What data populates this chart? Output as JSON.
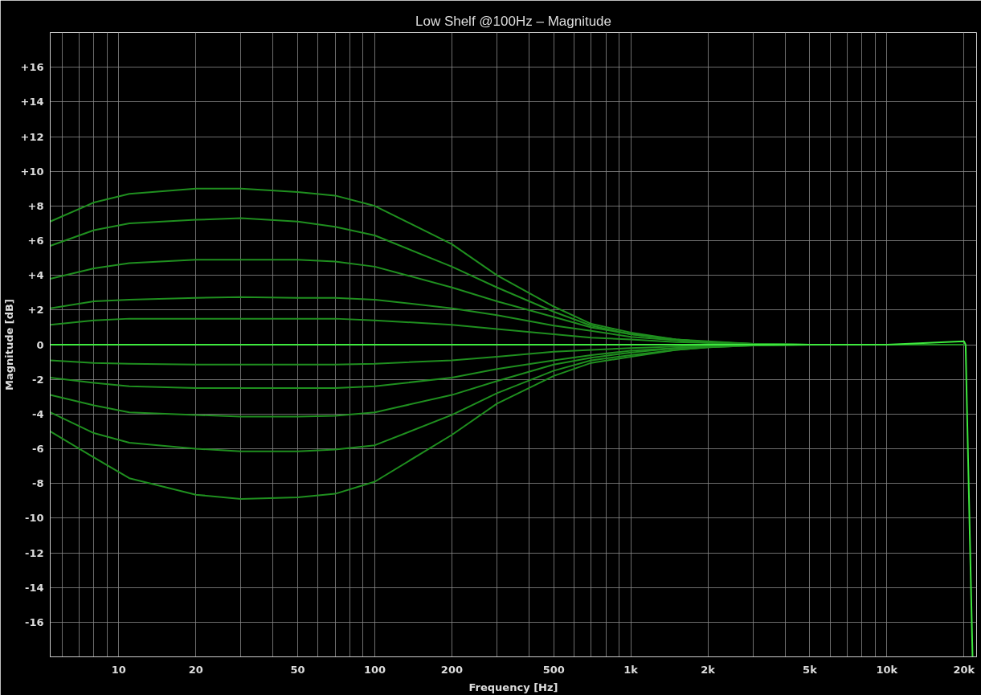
{
  "chart_data": {
    "type": "line",
    "title": "Low Shelf @100Hz – Magnitude",
    "xlabel": "Frequency [Hz]",
    "ylabel": "Magnitude [dB]",
    "log": "x",
    "grid": true,
    "line_style": "solid",
    "xlim": [
      5.4,
      22400
    ],
    "ylim": [
      -18,
      18
    ],
    "xticks": [
      {
        "value": 6,
        "label": null
      },
      {
        "value": 7,
        "label": null
      },
      {
        "value": 8,
        "label": null
      },
      {
        "value": 9,
        "label": null
      },
      10,
      20,
      {
        "value": 30,
        "label": null
      },
      {
        "value": 40,
        "label": null
      },
      50,
      {
        "value": 60,
        "label": null
      },
      {
        "value": 70,
        "label": null
      },
      {
        "value": 80,
        "label": null
      },
      {
        "value": 90,
        "label": null
      },
      100,
      200,
      {
        "value": 300,
        "label": null
      },
      {
        "value": 400,
        "label": null
      },
      500,
      {
        "value": 600,
        "label": null
      },
      {
        "value": 700,
        "label": null
      },
      {
        "value": 800,
        "label": null
      },
      {
        "value": 900,
        "label": null
      },
      {
        "value": 1000,
        "label": "1k"
      },
      {
        "value": 2000,
        "label": "2k"
      },
      {
        "value": 3000,
        "label": null
      },
      {
        "value": 4000,
        "label": null
      },
      {
        "value": 5000,
        "label": "5k"
      },
      {
        "value": 6000,
        "label": null
      },
      {
        "value": 7000,
        "label": null
      },
      {
        "value": 8000,
        "label": null
      },
      {
        "value": 9000,
        "label": null
      },
      {
        "value": 10000,
        "label": "10k"
      },
      {
        "value": 20000,
        "label": "20k"
      }
    ],
    "yticks": [
      {
        "value": -16,
        "label": "-16"
      },
      {
        "value": -14,
        "label": "-14"
      },
      {
        "value": -12,
        "label": "-12"
      },
      {
        "value": -10,
        "label": "-10"
      },
      {
        "value": -8,
        "label": "-8"
      },
      {
        "value": -6,
        "label": "-6"
      },
      {
        "value": -4,
        "label": "-4"
      },
      {
        "value": -2,
        "label": "-2"
      },
      0,
      {
        "value": 2,
        "label": "+2"
      },
      {
        "value": 4,
        "label": "+4"
      },
      {
        "value": 6,
        "label": "+6"
      },
      {
        "value": 8,
        "label": "+8"
      },
      {
        "value": 10,
        "label": "+10"
      },
      {
        "value": 12,
        "label": "+12"
      },
      {
        "value": 14,
        "label": "+14"
      },
      {
        "value": 16,
        "label": "+16"
      }
    ],
    "x": [
      5.4,
      8,
      11,
      20,
      30,
      50,
      70,
      100,
      200,
      300,
      500,
      700,
      1000,
      1500,
      2000,
      3000,
      5000,
      10000,
      20000
    ],
    "series": [
      {
        "color": "#1f8f1f",
        "values": [
          7.1,
          8.2,
          8.7,
          9.0,
          9.0,
          8.8,
          8.6,
          8.0,
          5.8,
          4.0,
          2.2,
          1.2,
          0.7,
          0.3,
          0.2,
          0.05,
          0,
          0,
          0
        ]
      },
      {
        "color": "#1f8f1f",
        "values": [
          5.7,
          6.6,
          7.0,
          7.2,
          7.3,
          7.1,
          6.8,
          6.3,
          4.5,
          3.3,
          1.9,
          1.1,
          0.6,
          0.3,
          0.15,
          0.05,
          0,
          0,
          0
        ]
      },
      {
        "color": "#1f8f1f",
        "values": [
          3.8,
          4.4,
          4.7,
          4.9,
          4.9,
          4.9,
          4.8,
          4.5,
          3.3,
          2.5,
          1.6,
          1.0,
          0.6,
          0.3,
          0.15,
          0.05,
          0,
          0,
          0
        ]
      },
      {
        "color": "#1f8f1f",
        "values": [
          2.1,
          2.5,
          2.6,
          2.7,
          2.75,
          2.7,
          2.7,
          2.6,
          2.1,
          1.7,
          1.1,
          0.8,
          0.45,
          0.25,
          0.1,
          0.05,
          0,
          0,
          0
        ]
      },
      {
        "color": "#1f8f1f",
        "values": [
          1.15,
          1.4,
          1.5,
          1.5,
          1.5,
          1.5,
          1.5,
          1.4,
          1.15,
          0.9,
          0.6,
          0.4,
          0.3,
          0.15,
          0.1,
          0,
          0,
          0,
          0
        ]
      },
      {
        "color": "#1f8f1f",
        "values": [
          -0.9,
          -1.05,
          -1.1,
          -1.15,
          -1.15,
          -1.15,
          -1.15,
          -1.1,
          -0.9,
          -0.7,
          -0.4,
          -0.3,
          -0.2,
          -0.1,
          -0.05,
          0,
          0,
          0,
          0
        ]
      },
      {
        "color": "#1f8f1f",
        "values": [
          -1.9,
          -2.2,
          -2.4,
          -2.5,
          -2.5,
          -2.5,
          -2.5,
          -2.4,
          -1.9,
          -1.4,
          -0.9,
          -0.6,
          -0.35,
          -0.2,
          -0.1,
          0,
          0,
          0,
          0
        ]
      },
      {
        "color": "#1f8f1f",
        "values": [
          -2.9,
          -3.5,
          -3.9,
          -4.05,
          -4.15,
          -4.15,
          -4.1,
          -3.9,
          -2.9,
          -2.1,
          -1.15,
          -0.75,
          -0.45,
          -0.2,
          -0.1,
          0,
          0,
          0,
          0
        ]
      },
      {
        "color": "#1f8f1f",
        "values": [
          -3.9,
          -5.1,
          -5.65,
          -6.0,
          -6.15,
          -6.15,
          -6.05,
          -5.8,
          -4.05,
          -2.8,
          -1.5,
          -0.9,
          -0.6,
          -0.3,
          -0.15,
          -0.05,
          0,
          0,
          0
        ]
      },
      {
        "color": "#1f8f1f",
        "values": [
          -5.0,
          -6.5,
          -7.7,
          -8.65,
          -8.9,
          -8.8,
          -8.6,
          -7.9,
          -5.2,
          -3.4,
          -1.8,
          -1.05,
          -0.7,
          -0.3,
          -0.15,
          -0.05,
          0,
          0,
          0
        ]
      },
      {
        "color": "#3ee83e",
        "x": [
          5.4,
          1000,
          10000,
          20000,
          20300,
          20500,
          21600
        ],
        "values": [
          0,
          0,
          0,
          0.2,
          0,
          -3,
          -18
        ]
      }
    ]
  }
}
